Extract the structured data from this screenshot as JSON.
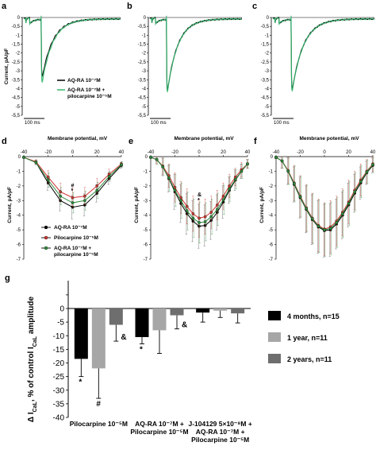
{
  "chart_data": [
    {
      "panel": "a",
      "type": "line",
      "ylabel": "Current, pA/pF",
      "y_ticks": [
        "0",
        "-0,5",
        "-1",
        "-1,5",
        "-2",
        "-2,5",
        "-3",
        "-3,5",
        "-4",
        "-4,5",
        "-5",
        "-5,5"
      ],
      "ylim": [
        -5.5,
        0
      ],
      "scale_bar": "100 ms",
      "legend": [
        "AQ-RA 10⁻⁷M",
        "AQ-RA 10⁻⁷M +",
        "pilocarpine 10⁻⁵M"
      ],
      "series": [
        {
          "name": "AQ-RA 10⁻⁷M",
          "color": "#000000",
          "peak": -3.7
        },
        {
          "name": "AQ-RA 10⁻⁷M + pilocarpine 10⁻⁵M",
          "color": "#33b56a",
          "peak": -4.0
        }
      ]
    },
    {
      "panel": "b",
      "type": "line",
      "y_ticks": [
        "0",
        "-0,5",
        "-1",
        "-1,5",
        "-2",
        "-2,5",
        "-3",
        "-3,5",
        "-4",
        "-4,5",
        "-5",
        "-5,5"
      ],
      "ylim": [
        -5.5,
        0
      ],
      "scale_bar": "100 ms",
      "series": [
        {
          "name": "AQ-RA 10⁻⁷M",
          "color": "#000000",
          "peak": -4.55
        },
        {
          "name": "AQ-RA 10⁻⁷M + pilocarpine 10⁻⁵M",
          "color": "#33b56a",
          "peak": -4.6
        }
      ]
    },
    {
      "panel": "c",
      "type": "line",
      "y_ticks": [
        "0",
        "-0,5",
        "-1",
        "-1,5",
        "-2",
        "-2,5",
        "-3",
        "-3,5",
        "-4",
        "-4,5",
        "-5",
        "-5,5"
      ],
      "ylim": [
        -5.5,
        0
      ],
      "scale_bar": "100 ms",
      "series": [
        {
          "name": "AQ-RA 10⁻⁷M",
          "color": "#000000",
          "peak": -4.5
        },
        {
          "name": "AQ-RA 10⁻⁷M + pilocarpine 10⁻⁵M",
          "color": "#33b56a",
          "peak": -4.55
        }
      ]
    },
    {
      "panel": "d",
      "type": "line",
      "xlabel": "Membrane potential, mV",
      "ylabel": "Current, pA/pF",
      "x_ticks": [
        "-40",
        "-20",
        "0",
        "20",
        "40"
      ],
      "y_ticks": [
        "0",
        "-1",
        "-2",
        "-3",
        "-4",
        "-5",
        "-6",
        "-7"
      ],
      "xlim": [
        -40,
        40
      ],
      "ylim": [
        -7,
        0
      ],
      "x": [
        -40,
        -30,
        -20,
        -10,
        0,
        10,
        20,
        30,
        40
      ],
      "legend": [
        "AQ-RA 10⁻⁷M",
        "Pilocarpine 10⁻⁵M",
        "AQ-RA 10⁻⁷M +",
        "pilocarpine 10⁻⁵M"
      ],
      "annotations": [
        "#",
        "*"
      ],
      "series": [
        {
          "name": "AQ-RA 10⁻⁷M",
          "color": "#000000",
          "values": [
            -0.05,
            -0.4,
            -1.8,
            -3.0,
            -3.45,
            -3.3,
            -2.5,
            -1.5,
            -0.6
          ],
          "errors": [
            0.05,
            0.15,
            0.5,
            0.7,
            0.8,
            0.75,
            0.6,
            0.4,
            0.2
          ]
        },
        {
          "name": "Pilocarpine 10⁻⁵M",
          "color": "#d03030",
          "values": [
            -0.05,
            -0.35,
            -1.4,
            -2.4,
            -2.8,
            -2.7,
            -2.0,
            -1.2,
            -0.5
          ],
          "errors": [
            0.05,
            0.15,
            0.45,
            0.6,
            0.65,
            0.6,
            0.5,
            0.35,
            0.15
          ]
        },
        {
          "name": "AQ-RA 10⁻⁷M + pilocarpine 10⁻⁵M",
          "color": "#2e8b3e",
          "values": [
            -0.05,
            -0.4,
            -1.6,
            -2.7,
            -3.15,
            -3.0,
            -2.3,
            -1.35,
            -0.55
          ],
          "errors": [
            0.05,
            0.15,
            0.5,
            0.6,
            0.7,
            0.65,
            0.55,
            0.35,
            0.2
          ]
        }
      ]
    },
    {
      "panel": "e",
      "type": "line",
      "xlabel": "Membrane potential, mV",
      "ylabel": "Current, pA/pF",
      "x_ticks": [
        "-40",
        "-20",
        "0",
        "20",
        "40"
      ],
      "y_ticks": [
        "0",
        "-1",
        "-2",
        "-3",
        "-4",
        "-5",
        "-6",
        "-7"
      ],
      "xlim": [
        -40,
        40
      ],
      "ylim": [
        -7,
        0
      ],
      "x": [
        -40,
        -35,
        -30,
        -25,
        -20,
        -15,
        -10,
        -5,
        0,
        5,
        10,
        15,
        20,
        25,
        30,
        35,
        40
      ],
      "annotations": [
        "&",
        "*"
      ],
      "series": [
        {
          "name": "AQ-RA 10⁻⁷M",
          "color": "#000000",
          "values": [
            -0.05,
            -0.2,
            -0.7,
            -1.5,
            -2.4,
            -3.2,
            -3.9,
            -4.4,
            -4.75,
            -4.7,
            -4.35,
            -3.8,
            -3.1,
            -2.3,
            -1.6,
            -1.0,
            -0.5
          ],
          "errors": [
            0.05,
            0.3,
            0.6,
            0.9,
            1.2,
            1.3,
            1.4,
            1.4,
            1.5,
            1.4,
            1.3,
            1.2,
            1.1,
            0.9,
            0.7,
            0.5,
            0.3
          ]
        },
        {
          "name": "Pilocarpine 10⁻⁵M",
          "color": "#d03030",
          "values": [
            -0.05,
            -0.2,
            -0.65,
            -1.3,
            -2.1,
            -2.8,
            -3.4,
            -3.9,
            -4.2,
            -4.1,
            -3.8,
            -3.3,
            -2.7,
            -2.0,
            -1.4,
            -0.9,
            -0.5
          ],
          "errors": [
            0.05,
            0.3,
            0.55,
            0.8,
            1.0,
            1.1,
            1.2,
            1.2,
            1.3,
            1.2,
            1.1,
            1.0,
            0.9,
            0.8,
            0.6,
            0.5,
            0.3
          ]
        },
        {
          "name": "AQ-RA 10⁻⁷M + pilocarpine 10⁻⁵M",
          "color": "#2e8b3e",
          "values": [
            -0.05,
            -0.2,
            -0.7,
            -1.45,
            -2.3,
            -3.0,
            -3.7,
            -4.2,
            -4.5,
            -4.45,
            -4.1,
            -3.6,
            -2.95,
            -2.2,
            -1.55,
            -1.0,
            -0.5
          ],
          "errors": [
            0.05,
            0.3,
            0.6,
            0.9,
            1.1,
            1.2,
            1.3,
            1.3,
            1.4,
            1.3,
            1.2,
            1.1,
            1.0,
            0.85,
            0.65,
            0.5,
            0.3
          ]
        }
      ]
    },
    {
      "panel": "f",
      "type": "line",
      "xlabel": "Membrane potential, mV",
      "ylabel": "Current, pA/pF",
      "x_ticks": [
        "-40",
        "-20",
        "0",
        "20",
        "40"
      ],
      "y_ticks": [
        "0",
        "-1",
        "-2",
        "-3",
        "-4",
        "-5",
        "-6",
        "-7"
      ],
      "xlim": [
        -40,
        40
      ],
      "ylim": [
        -7,
        0
      ],
      "x": [
        -40,
        -35,
        -30,
        -25,
        -20,
        -15,
        -10,
        -5,
        0,
        5,
        10,
        15,
        20,
        25,
        30,
        35,
        40
      ],
      "series": [
        {
          "name": "AQ-RA 10⁻⁷M",
          "color": "#000000",
          "values": [
            -0.05,
            -0.3,
            -1.0,
            -1.9,
            -2.8,
            -3.6,
            -4.3,
            -4.8,
            -5.05,
            -5.0,
            -4.6,
            -4.0,
            -3.3,
            -2.5,
            -1.8,
            -1.1,
            -0.6
          ],
          "errors": [
            0.1,
            0.5,
            0.9,
            1.2,
            1.4,
            1.6,
            1.7,
            1.8,
            1.8,
            1.8,
            1.7,
            1.6,
            1.5,
            1.3,
            1.1,
            0.8,
            0.5
          ]
        },
        {
          "name": "Pilocarpine 10⁻⁵M",
          "color": "#d03030",
          "values": [
            -0.05,
            -0.3,
            -0.95,
            -1.8,
            -2.7,
            -3.5,
            -4.2,
            -4.7,
            -4.95,
            -4.8,
            -4.4,
            -3.8,
            -3.1,
            -2.3,
            -1.6,
            -1.0,
            -0.5
          ],
          "errors": [
            0.1,
            0.5,
            0.9,
            1.2,
            1.4,
            1.6,
            1.7,
            1.8,
            1.8,
            1.8,
            1.7,
            1.6,
            1.5,
            1.3,
            1.1,
            0.8,
            0.5
          ]
        },
        {
          "name": "AQ-RA 10⁻⁷M + pilocarpine 10⁻⁵M",
          "color": "#2e8b3e",
          "values": [
            -0.05,
            -0.3,
            -1.0,
            -1.85,
            -2.75,
            -3.55,
            -4.25,
            -4.75,
            -5.0,
            -4.9,
            -4.5,
            -3.9,
            -3.2,
            -2.4,
            -1.7,
            -1.05,
            -0.55
          ],
          "errors": [
            0.1,
            0.5,
            0.9,
            1.2,
            1.4,
            1.6,
            1.7,
            1.8,
            1.8,
            1.8,
            1.7,
            1.6,
            1.5,
            1.3,
            1.1,
            0.8,
            0.5
          ]
        }
      ]
    },
    {
      "panel": "g",
      "type": "bar",
      "ylabel": "Δ I",
      "ylabel_sub": "CaL",
      "ylabel_rest": ", % of control I",
      "ylabel_sub2": "CaL",
      "ylabel_end": " amplitude",
      "y_ticks": [
        "0",
        "-5",
        "-10",
        "-15",
        "-20",
        "-25",
        "-30",
        "-35",
        "-40"
      ],
      "ylim": [
        -40,
        0
      ],
      "categories": [
        [
          "Pilocarpine 10⁻⁵M"
        ],
        [
          "AQ-RA 10⁻⁷M +",
          "Pilocarpine 10⁻⁵M"
        ],
        [
          "J-104129 5×10⁻⁸M +",
          "AQ-RA 10⁻⁷M +",
          "Pilocarpine 10⁻⁵M"
        ]
      ],
      "series": [
        {
          "name": "4 months, n=15",
          "color": "#000000",
          "values": [
            -18.5,
            -10.5,
            -1.5
          ],
          "errors": [
            6.5,
            2.5,
            3.5
          ]
        },
        {
          "name": "1 year, n=11",
          "color": "#a6a6a6",
          "values": [
            -22.0,
            -8.0,
            -0.8
          ],
          "errors": [
            11.0,
            8.5,
            2.5
          ]
        },
        {
          "name": "2 years, n=11",
          "color": "#6e6e6e",
          "values": [
            -6.0,
            -2.5,
            -1.8
          ],
          "errors": [
            6.0,
            5.0,
            3.5
          ]
        }
      ],
      "annotations": [
        {
          "text": "*",
          "group": 0,
          "series": 0
        },
        {
          "text": "#",
          "group": 0,
          "series": 1
        },
        {
          "text": "&",
          "group": 0,
          "series": 2
        },
        {
          "text": "*",
          "group": 1,
          "series": 0
        },
        {
          "text": "&",
          "group": 1,
          "series": 2
        }
      ]
    }
  ]
}
